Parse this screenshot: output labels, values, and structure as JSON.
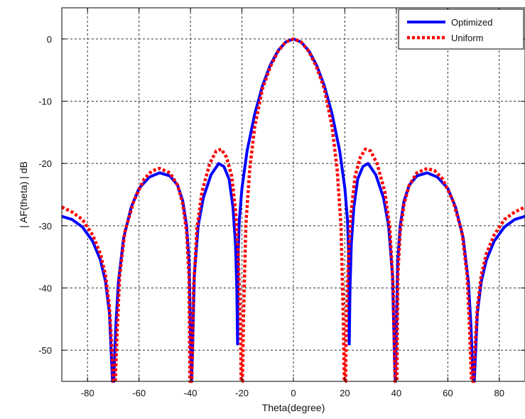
{
  "chart_data": {
    "type": "line",
    "xlabel": "Theta(degree)",
    "ylabel": "| AF(theta) | dB",
    "xlim": [
      -90,
      90
    ],
    "ylim": [
      -55,
      5
    ],
    "x_ticks": [
      -80,
      -60,
      -40,
      -20,
      0,
      20,
      40,
      60,
      80
    ],
    "y_ticks": [
      0,
      -10,
      -20,
      -30,
      -40,
      -50
    ],
    "grid": true,
    "legend_position": "top-right",
    "series": [
      {
        "name": "Optimized",
        "color": "#0000ff",
        "style": "solid",
        "points": [
          [
            -90,
            -28.5
          ],
          [
            -86,
            -29.0
          ],
          [
            -82,
            -30.2
          ],
          [
            -78,
            -32.5
          ],
          [
            -75,
            -35.5
          ],
          [
            -73,
            -39.0
          ],
          [
            -71.5,
            -44.0
          ],
          [
            -70.3,
            -55.0
          ],
          [
            -69.8,
            -55.0
          ],
          [
            -69,
            -46.0
          ],
          [
            -68,
            -39.0
          ],
          [
            -66,
            -32.0
          ],
          [
            -63,
            -27.0
          ],
          [
            -60,
            -24.0
          ],
          [
            -56,
            -22.2
          ],
          [
            -52,
            -21.5
          ],
          [
            -48,
            -22.0
          ],
          [
            -45,
            -23.5
          ],
          [
            -43,
            -26.0
          ],
          [
            -41.5,
            -30.0
          ],
          [
            -40.5,
            -36.0
          ],
          [
            -39.9,
            -50.0
          ],
          [
            -39.6,
            -55.0
          ],
          [
            -39.2,
            -50.0
          ],
          [
            -38.5,
            -38.0
          ],
          [
            -37,
            -30.0
          ],
          [
            -35,
            -25.5
          ],
          [
            -32,
            -21.8
          ],
          [
            -29,
            -20.0
          ],
          [
            -27,
            -20.5
          ],
          [
            -25,
            -22.5
          ],
          [
            -23.5,
            -27.0
          ],
          [
            -22.5,
            -33.0
          ],
          [
            -22,
            -40.0
          ],
          [
            -21.7,
            -49.0
          ],
          [
            -21.5,
            -35.0
          ],
          [
            -21,
            -29.0
          ],
          [
            -20,
            -24.0
          ],
          [
            -18,
            -18.0
          ],
          [
            -15,
            -12.0
          ],
          [
            -12,
            -7.5
          ],
          [
            -9,
            -4.2
          ],
          [
            -6,
            -1.9
          ],
          [
            -3,
            -0.5
          ],
          [
            0,
            0.0
          ],
          [
            3,
            -0.5
          ],
          [
            6,
            -1.9
          ],
          [
            9,
            -4.2
          ],
          [
            12,
            -7.5
          ],
          [
            15,
            -12.0
          ],
          [
            18,
            -18.0
          ],
          [
            20,
            -24.0
          ],
          [
            21,
            -29.0
          ],
          [
            21.5,
            -35.0
          ],
          [
            21.7,
            -49.0
          ],
          [
            22,
            -40.0
          ],
          [
            22.5,
            -33.0
          ],
          [
            23.5,
            -27.0
          ],
          [
            25,
            -22.5
          ],
          [
            27,
            -20.5
          ],
          [
            29,
            -20.0
          ],
          [
            32,
            -21.8
          ],
          [
            35,
            -25.5
          ],
          [
            37,
            -30.0
          ],
          [
            38.5,
            -38.0
          ],
          [
            39.2,
            -50.0
          ],
          [
            39.6,
            -55.0
          ],
          [
            39.9,
            -50.0
          ],
          [
            40.5,
            -36.0
          ],
          [
            41.5,
            -30.0
          ],
          [
            43,
            -26.0
          ],
          [
            45,
            -23.5
          ],
          [
            48,
            -22.0
          ],
          [
            52,
            -21.5
          ],
          [
            56,
            -22.2
          ],
          [
            60,
            -24.0
          ],
          [
            63,
            -27.0
          ],
          [
            66,
            -32.0
          ],
          [
            68,
            -39.0
          ],
          [
            69,
            -46.0
          ],
          [
            69.8,
            -55.0
          ],
          [
            70.3,
            -55.0
          ],
          [
            71.5,
            -44.0
          ],
          [
            73,
            -39.0
          ],
          [
            75,
            -35.5
          ],
          [
            78,
            -32.5
          ],
          [
            82,
            -30.2
          ],
          [
            86,
            -29.0
          ],
          [
            90,
            -28.5
          ]
        ]
      },
      {
        "name": "Uniform",
        "color": "#ff0000",
        "style": "dotted",
        "points": [
          [
            -90,
            -27.0
          ],
          [
            -86,
            -27.8
          ],
          [
            -82,
            -29.0
          ],
          [
            -78,
            -31.5
          ],
          [
            -75,
            -34.5
          ],
          [
            -73,
            -38.0
          ],
          [
            -71.5,
            -43.0
          ],
          [
            -70.5,
            -50.0
          ],
          [
            -70.0,
            -55.0
          ],
          [
            -69.2,
            -55.0
          ],
          [
            -68.5,
            -47.0
          ],
          [
            -67.5,
            -38.0
          ],
          [
            -65.5,
            -31.0
          ],
          [
            -62,
            -26.0
          ],
          [
            -58,
            -22.5
          ],
          [
            -55,
            -21.2
          ],
          [
            -52,
            -20.8
          ],
          [
            -48,
            -21.5
          ],
          [
            -45,
            -23.5
          ],
          [
            -43,
            -26.5
          ],
          [
            -41.5,
            -31.0
          ],
          [
            -40.6,
            -38.0
          ],
          [
            -40.2,
            -55.0
          ],
          [
            -39.5,
            -55.0
          ],
          [
            -38.8,
            -40.0
          ],
          [
            -37.5,
            -30.5
          ],
          [
            -35.5,
            -24.5
          ],
          [
            -32.5,
            -20.0
          ],
          [
            -30,
            -18.0
          ],
          [
            -28,
            -17.7
          ],
          [
            -26,
            -19.0
          ],
          [
            -24,
            -22.0
          ],
          [
            -22.5,
            -27.5
          ],
          [
            -21.5,
            -34.0
          ],
          [
            -21,
            -40.0
          ],
          [
            -20.5,
            -47.0
          ],
          [
            -20.3,
            -55.0
          ],
          [
            -19.8,
            -55.0
          ],
          [
            -19.4,
            -45.0
          ],
          [
            -18.5,
            -30.0
          ],
          [
            -17,
            -21.0
          ],
          [
            -15,
            -14.0
          ],
          [
            -12,
            -8.0
          ],
          [
            -9,
            -4.5
          ],
          [
            -6,
            -2.0
          ],
          [
            -3,
            -0.5
          ],
          [
            0,
            0.0
          ],
          [
            3,
            -0.5
          ],
          [
            6,
            -2.0
          ],
          [
            9,
            -4.5
          ],
          [
            12,
            -8.0
          ],
          [
            15,
            -14.0
          ],
          [
            17,
            -21.0
          ],
          [
            18.5,
            -30.0
          ],
          [
            19.4,
            -45.0
          ],
          [
            19.8,
            -55.0
          ],
          [
            20.3,
            -55.0
          ],
          [
            20.5,
            -47.0
          ],
          [
            21,
            -40.0
          ],
          [
            21.5,
            -34.0
          ],
          [
            22.5,
            -27.5
          ],
          [
            24,
            -22.0
          ],
          [
            26,
            -19.0
          ],
          [
            28,
            -17.7
          ],
          [
            30,
            -18.0
          ],
          [
            32.5,
            -20.0
          ],
          [
            35.5,
            -24.5
          ],
          [
            37.5,
            -30.5
          ],
          [
            38.8,
            -40.0
          ],
          [
            39.5,
            -55.0
          ],
          [
            40.2,
            -55.0
          ],
          [
            40.6,
            -38.0
          ],
          [
            41.5,
            -31.0
          ],
          [
            43,
            -26.5
          ],
          [
            45,
            -23.5
          ],
          [
            48,
            -21.5
          ],
          [
            52,
            -20.8
          ],
          [
            55,
            -21.2
          ],
          [
            58,
            -22.5
          ],
          [
            62,
            -26.0
          ],
          [
            65.5,
            -31.0
          ],
          [
            67.5,
            -38.0
          ],
          [
            68.5,
            -47.0
          ],
          [
            69.2,
            -55.0
          ],
          [
            70.0,
            -55.0
          ],
          [
            70.5,
            -50.0
          ],
          [
            71.5,
            -43.0
          ],
          [
            73,
            -38.0
          ],
          [
            75,
            -34.5
          ],
          [
            78,
            -31.5
          ],
          [
            82,
            -29.0
          ],
          [
            86,
            -27.8
          ],
          [
            90,
            -27.0
          ]
        ]
      }
    ]
  }
}
